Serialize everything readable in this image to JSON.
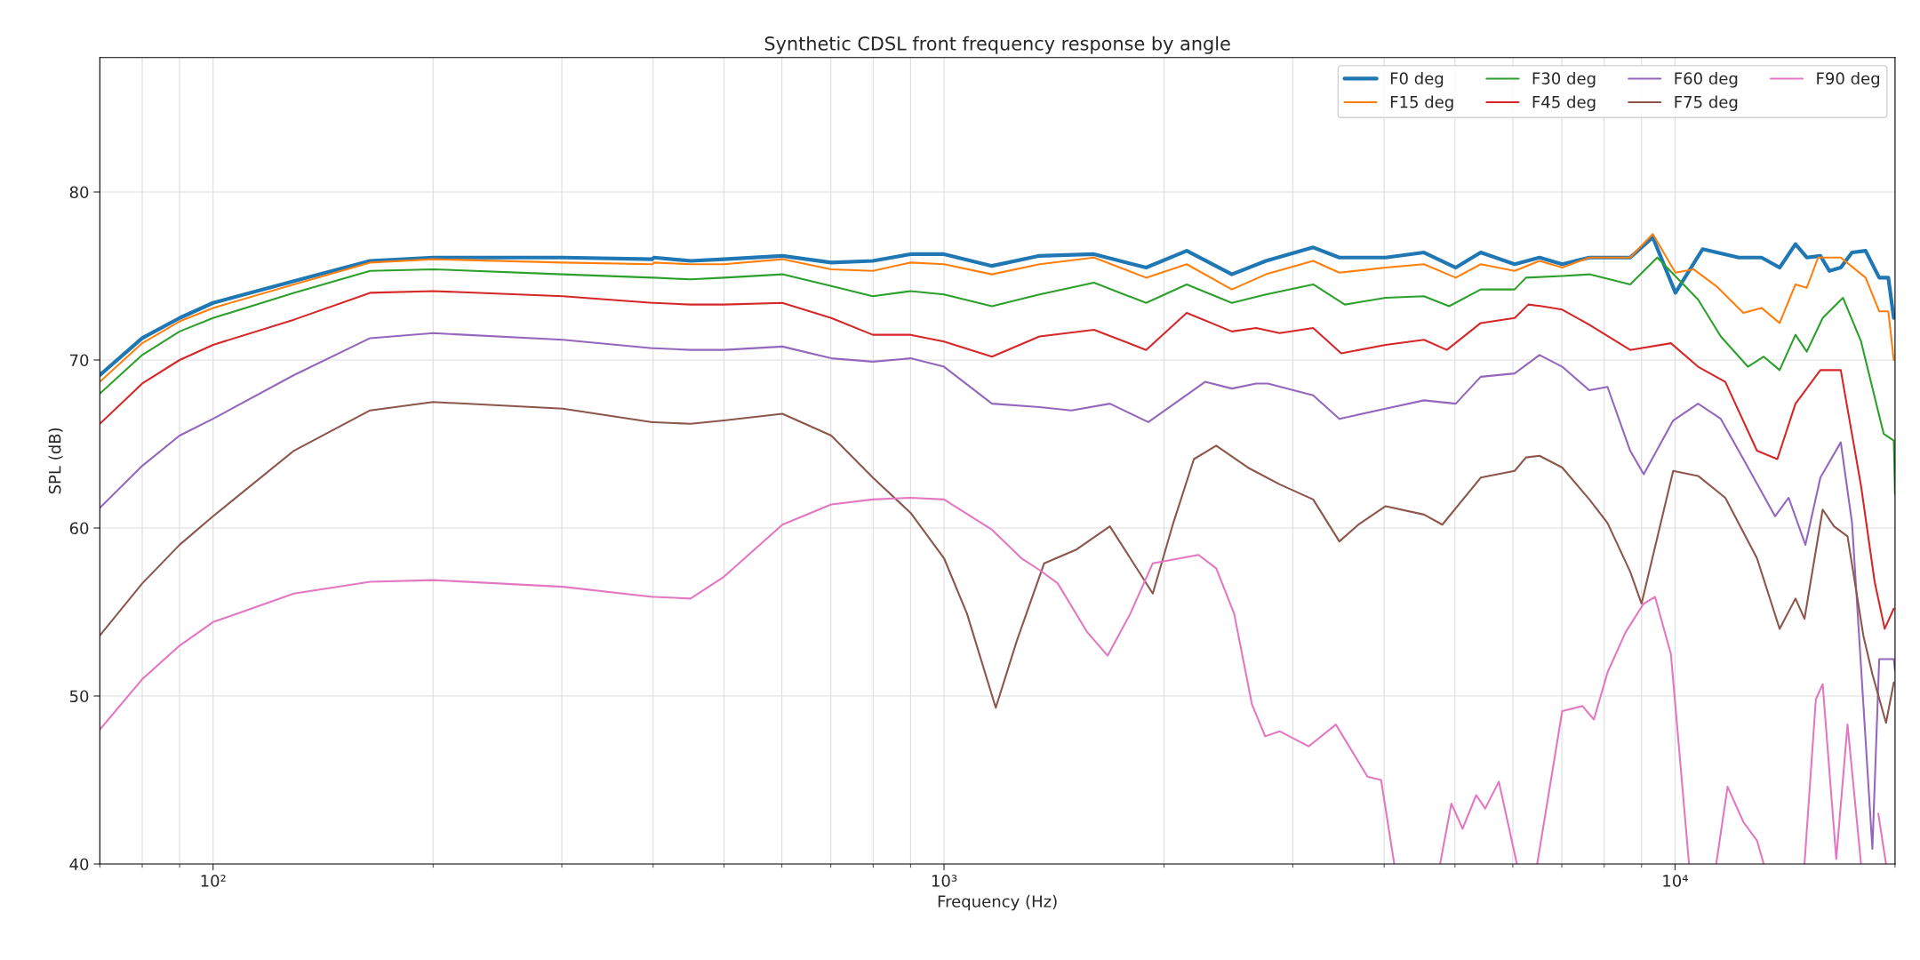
{
  "chart_data": {
    "type": "line",
    "title": "Synthetic CDSL front frequency response by angle",
    "xlabel": "Frequency (Hz)",
    "ylabel": "SPL (dB)",
    "log": "x",
    "xlim": [
      70,
      20000
    ],
    "ylim": [
      40,
      88
    ],
    "xticks": [
      {
        "value": 100,
        "label": "10²"
      },
      {
        "value": 1000,
        "label": "10³"
      },
      {
        "value": 10000,
        "label": "10⁴"
      }
    ],
    "yticks": [
      40,
      50,
      60,
      70,
      80
    ],
    "grid": true,
    "legend": "top right",
    "line_style": "solid",
    "marker": "none",
    "series": [
      {
        "name": "F0 deg",
        "color": "#1f77b4",
        "x": [
          70,
          80,
          90,
          100,
          129,
          164,
          200,
          301,
          399,
          401,
          450,
          500,
          601,
          701,
          799,
          900,
          1000,
          1163,
          1351,
          1604,
          1890,
          2148,
          2476,
          2757,
          3199,
          3474,
          4019,
          4535,
          5013,
          5423,
          6034,
          6526,
          7010,
          7636,
          8683,
          9325,
          10014,
          10909,
          12228,
          13132,
          13904,
          14616,
          15146,
          15810,
          16267,
          16857,
          17467,
          18229,
          19027,
          19580,
          19920
        ],
        "values": [
          69.1,
          71.3,
          72.5,
          73.4,
          74.7,
          75.9,
          76.1,
          76.1,
          76.0,
          76.1,
          75.9,
          76.0,
          76.2,
          75.8,
          75.9,
          76.3,
          76.3,
          75.6,
          76.2,
          76.3,
          75.5,
          76.5,
          75.1,
          75.9,
          76.7,
          76.1,
          76.1,
          76.4,
          75.5,
          76.4,
          75.7,
          76.1,
          75.7,
          76.1,
          76.1,
          77.3,
          74.0,
          76.6,
          76.1,
          76.1,
          75.5,
          76.9,
          76.1,
          76.2,
          75.3,
          75.5,
          76.4,
          76.5,
          74.9,
          74.9,
          72.5
        ]
      },
      {
        "name": "F15 deg",
        "color": "#ff7f0e",
        "x": [
          70,
          80,
          90,
          100,
          129,
          164,
          200,
          301,
          399,
          401,
          450,
          500,
          601,
          701,
          799,
          900,
          1000,
          1163,
          1351,
          1604,
          1890,
          2148,
          2476,
          2757,
          3199,
          3474,
          4019,
          4535,
          5013,
          5423,
          6034,
          6526,
          7010,
          7636,
          8683,
          9325,
          10014,
          10602,
          11387,
          12404,
          13132,
          13904,
          14616,
          15146,
          15697,
          16857,
          18229,
          19027,
          19580,
          19920
        ],
        "values": [
          68.7,
          71.0,
          72.3,
          73.1,
          74.5,
          75.8,
          76.0,
          75.8,
          75.7,
          75.8,
          75.7,
          75.7,
          76.0,
          75.4,
          75.3,
          75.8,
          75.7,
          75.1,
          75.7,
          76.1,
          74.9,
          75.7,
          74.2,
          75.1,
          75.9,
          75.2,
          75.5,
          75.7,
          74.9,
          75.7,
          75.3,
          75.9,
          75.5,
          76.1,
          76.1,
          77.5,
          75.2,
          75.4,
          74.4,
          72.8,
          73.1,
          72.2,
          74.5,
          74.3,
          76.1,
          76.1,
          74.9,
          72.9,
          72.9,
          70.0
        ]
      },
      {
        "name": "F30 deg",
        "color": "#2ca02c",
        "x": [
          70,
          80,
          90,
          100,
          129,
          164,
          200,
          301,
          399,
          401,
          450,
          500,
          601,
          701,
          799,
          900,
          1000,
          1163,
          1351,
          1604,
          1890,
          2148,
          2476,
          2757,
          3199,
          3534,
          4019,
          4535,
          4909,
          5423,
          6034,
          6254,
          7010,
          7636,
          8683,
          9458,
          10755,
          11551,
          12582,
          13226,
          13904,
          14616,
          15146,
          15923,
          16977,
          17970,
          19300,
          19920,
          20000
        ],
        "values": [
          68.0,
          70.3,
          71.7,
          72.5,
          74.0,
          75.3,
          75.4,
          75.1,
          74.9,
          74.9,
          74.8,
          74.9,
          75.1,
          74.4,
          73.8,
          74.1,
          73.9,
          73.2,
          73.9,
          74.6,
          73.4,
          74.5,
          73.4,
          73.9,
          74.5,
          73.3,
          73.7,
          73.8,
          73.2,
          74.2,
          74.2,
          74.9,
          75.0,
          75.1,
          74.5,
          76.1,
          73.6,
          71.4,
          69.6,
          70.2,
          69.4,
          71.5,
          70.5,
          72.5,
          73.7,
          71.1,
          65.6,
          65.2,
          62.0
        ]
      },
      {
        "name": "F45 deg",
        "color": "#d62728",
        "x": [
          70,
          80,
          90,
          100,
          129,
          164,
          200,
          301,
          399,
          401,
          450,
          500,
          601,
          701,
          799,
          900,
          1000,
          1163,
          1351,
          1604,
          1890,
          2148,
          2476,
          2673,
          2878,
          3199,
          3494,
          4019,
          4535,
          4874,
          5423,
          6034,
          6299,
          6573,
          7010,
          7636,
          8683,
          9872,
          10755,
          11717,
          12946,
          13804,
          14616,
          15810,
          16857,
          17970,
          18756,
          19358,
          19920
        ],
        "values": [
          66.2,
          68.6,
          70.0,
          70.9,
          72.4,
          74.0,
          74.1,
          73.8,
          73.4,
          73.4,
          73.3,
          73.3,
          73.4,
          72.5,
          71.5,
          71.5,
          71.1,
          70.2,
          71.4,
          71.8,
          70.6,
          72.8,
          71.7,
          71.9,
          71.6,
          71.9,
          70.4,
          70.9,
          71.2,
          70.6,
          72.2,
          72.5,
          73.3,
          73.2,
          73.0,
          72.1,
          70.6,
          71.0,
          69.6,
          68.7,
          64.6,
          64.1,
          67.4,
          69.4,
          69.4,
          62.5,
          56.8,
          54.0,
          55.2
        ]
      },
      {
        "name": "F60 deg",
        "color": "#9467bd",
        "x": [
          70,
          80,
          90,
          100,
          129,
          164,
          200,
          301,
          399,
          401,
          450,
          500,
          601,
          701,
          799,
          900,
          1000,
          1163,
          1351,
          1494,
          1686,
          1903,
          2276,
          2476,
          2673,
          2773,
          3199,
          3474,
          4019,
          4535,
          5013,
          5423,
          6034,
          6526,
          7010,
          7636,
          8085,
          8683,
          9062,
          9943,
          10755,
          11551,
          12404,
          13705,
          14306,
          15080,
          15810,
          16857,
          17467,
          18623,
          19027,
          19920,
          20000
        ],
        "values": [
          61.2,
          63.7,
          65.5,
          66.5,
          69.1,
          71.3,
          71.6,
          71.2,
          70.7,
          70.7,
          70.6,
          70.6,
          70.8,
          70.1,
          69.9,
          70.1,
          69.6,
          67.4,
          67.2,
          67.0,
          67.4,
          66.3,
          68.7,
          68.3,
          68.6,
          68.6,
          67.9,
          66.5,
          67.1,
          67.6,
          67.4,
          69.0,
          69.2,
          70.3,
          69.6,
          68.2,
          68.4,
          64.6,
          63.2,
          66.4,
          67.4,
          66.5,
          64.1,
          60.7,
          61.8,
          59.0,
          63.0,
          65.1,
          60.3,
          40.9,
          52.2,
          52.2,
          51.5
        ]
      },
      {
        "name": "F75 deg",
        "color": "#8c564b",
        "x": [
          70,
          80,
          90,
          100,
          129,
          164,
          200,
          301,
          399,
          401,
          450,
          500,
          601,
          701,
          799,
          900,
          1000,
          1075,
          1177,
          1258,
          1371,
          1515,
          1686,
          1798,
          1930,
          2059,
          2197,
          2357,
          2604,
          2878,
          3199,
          3474,
          3689,
          4019,
          4535,
          4805,
          5423,
          6034,
          6254,
          6526,
          7010,
          7636,
          8085,
          8683,
          9000,
          9943,
          10755,
          11717,
          12946,
          13904,
          14616,
          15037,
          15923,
          16501,
          17220,
          18099,
          18623,
          19440,
          19920
        ],
        "values": [
          53.6,
          56.7,
          59.0,
          60.7,
          64.6,
          67.0,
          67.5,
          67.1,
          66.3,
          66.3,
          66.2,
          66.4,
          66.8,
          65.5,
          63.0,
          60.9,
          58.2,
          54.9,
          49.3,
          53.3,
          57.9,
          58.7,
          60.1,
          58.2,
          56.1,
          60.3,
          64.1,
          64.9,
          63.6,
          62.6,
          61.7,
          59.2,
          60.2,
          61.3,
          60.8,
          60.2,
          63.0,
          63.4,
          64.2,
          64.3,
          63.6,
          61.7,
          60.3,
          57.4,
          55.5,
          63.4,
          63.1,
          61.8,
          58.2,
          54.0,
          55.8,
          54.6,
          61.1,
          60.1,
          59.5,
          53.6,
          51.3,
          48.4,
          50.8
        ]
      },
      {
        "name": "F90 deg",
        "color": "#e377c2",
        "x": [
          70,
          80,
          90,
          100,
          129,
          164,
          200,
          301,
          399,
          401,
          450,
          500,
          601,
          701,
          799,
          900,
          1000,
          1163,
          1276,
          1351,
          1431,
          1570,
          1674,
          1798,
          1930,
          2229,
          2357,
          2494,
          2638,
          2750,
          2878,
          3153,
          3436,
          3796,
          3962,
          4130,
          4300,
          4771,
          4944,
          5122,
          5346,
          5500,
          5741,
          6078,
          6200,
          6479,
          7010,
          7474,
          7746,
          8085,
          8560,
          9062,
          9391,
          9872,
          10452,
          10900,
          11387,
          11801,
          12404,
          12946,
          13226,
          14000,
          15037,
          15585,
          15923,
          16619,
          17220,
          17970,
          18400,
          18973,
          19440
        ],
        "values": [
          48.0,
          51.0,
          53.0,
          54.4,
          56.1,
          56.8,
          56.9,
          56.5,
          55.9,
          55.9,
          55.8,
          57.1,
          60.2,
          61.4,
          61.7,
          61.8,
          61.7,
          59.9,
          58.2,
          57.5,
          56.7,
          53.8,
          52.4,
          54.9,
          57.9,
          58.4,
          57.6,
          54.9,
          49.5,
          47.6,
          47.9,
          47.0,
          48.3,
          45.2,
          45.0,
          40,
          null,
          40,
          43.6,
          42.1,
          44.1,
          43.3,
          44.9,
          40,
          null,
          40,
          49.1,
          49.4,
          48.6,
          51.4,
          53.8,
          55.5,
          55.9,
          52.5,
          40,
          null,
          40,
          44.6,
          42.5,
          41.4,
          40,
          null,
          40,
          49.8,
          50.7,
          40.3,
          48.3,
          40,
          null,
          43.0,
          40
        ]
      }
    ]
  }
}
